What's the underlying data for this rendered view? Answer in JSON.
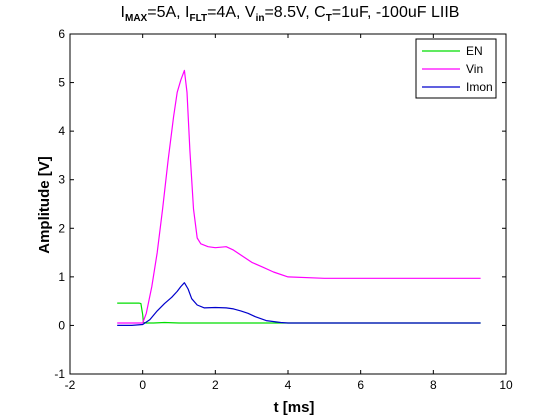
{
  "chart_data": {
    "type": "line",
    "title": {
      "text": "I_MAX=5A, I_FLT=4A, V_in=8.5V, C_T=1uF, -100uF LIIB",
      "parts": [
        {
          "t": "I",
          "sub": false
        },
        {
          "t": "MAX",
          "sub": true
        },
        {
          "t": "=5A, I",
          "sub": false
        },
        {
          "t": "FLT",
          "sub": true
        },
        {
          "t": "=4A, V",
          "sub": false
        },
        {
          "t": "in",
          "sub": true
        },
        {
          "t": "=8.5V, C",
          "sub": false
        },
        {
          "t": "T",
          "sub": true
        },
        {
          "t": "=1uF, -100uF LIIB",
          "sub": false
        }
      ]
    },
    "xlabel": "t [ms]",
    "ylabel": "Amplitude [V]",
    "xlim": [
      -2,
      10
    ],
    "ylim": [
      -1,
      6
    ],
    "xticks": [
      -2,
      0,
      2,
      4,
      6,
      8,
      10
    ],
    "yticks": [
      -1,
      0,
      1,
      2,
      3,
      4,
      5,
      6
    ],
    "grid": false,
    "legend_position": "top-right",
    "series": [
      {
        "name": "EN",
        "color": "#00dd00",
        "x": [
          -0.7,
          -0.1,
          -0.05,
          0.0,
          0.02,
          0.1,
          0.3,
          0.6,
          1.0,
          2.0,
          3.0,
          4.0,
          5.0,
          6.0,
          7.0,
          8.0,
          9.3
        ],
        "y": [
          0.46,
          0.46,
          0.45,
          0.22,
          0.06,
          0.05,
          0.05,
          0.06,
          0.05,
          0.05,
          0.05,
          0.05,
          0.05,
          0.05,
          0.05,
          0.05,
          0.05
        ]
      },
      {
        "name": "Vin",
        "color": "#ff00ff",
        "x": [
          -0.7,
          -0.3,
          0.0,
          0.1,
          0.25,
          0.4,
          0.55,
          0.7,
          0.85,
          0.95,
          1.05,
          1.15,
          1.22,
          1.3,
          1.4,
          1.5,
          1.6,
          1.8,
          2.0,
          2.3,
          2.5,
          2.7,
          3.0,
          3.3,
          3.6,
          4.0,
          5.0,
          6.0,
          7.0,
          8.0,
          9.3
        ],
        "y": [
          0.05,
          0.05,
          0.05,
          0.25,
          0.8,
          1.5,
          2.4,
          3.4,
          4.3,
          4.8,
          5.05,
          5.25,
          4.8,
          3.6,
          2.4,
          1.8,
          1.68,
          1.62,
          1.6,
          1.62,
          1.55,
          1.45,
          1.3,
          1.2,
          1.1,
          1.0,
          0.97,
          0.97,
          0.97,
          0.97,
          0.97
        ]
      },
      {
        "name": "Imon",
        "color": "#0000cc",
        "x": [
          -0.7,
          -0.3,
          0.0,
          0.2,
          0.4,
          0.6,
          0.8,
          0.95,
          1.05,
          1.15,
          1.25,
          1.35,
          1.5,
          1.7,
          2.0,
          2.3,
          2.5,
          2.7,
          2.9,
          3.1,
          3.4,
          3.8,
          4.0,
          5.0,
          6.0,
          7.0,
          8.0,
          9.3
        ],
        "y": [
          0.0,
          0.0,
          0.02,
          0.12,
          0.3,
          0.45,
          0.58,
          0.7,
          0.8,
          0.88,
          0.75,
          0.55,
          0.42,
          0.36,
          0.37,
          0.36,
          0.34,
          0.3,
          0.25,
          0.18,
          0.1,
          0.06,
          0.05,
          0.05,
          0.05,
          0.05,
          0.05,
          0.05
        ]
      }
    ]
  }
}
